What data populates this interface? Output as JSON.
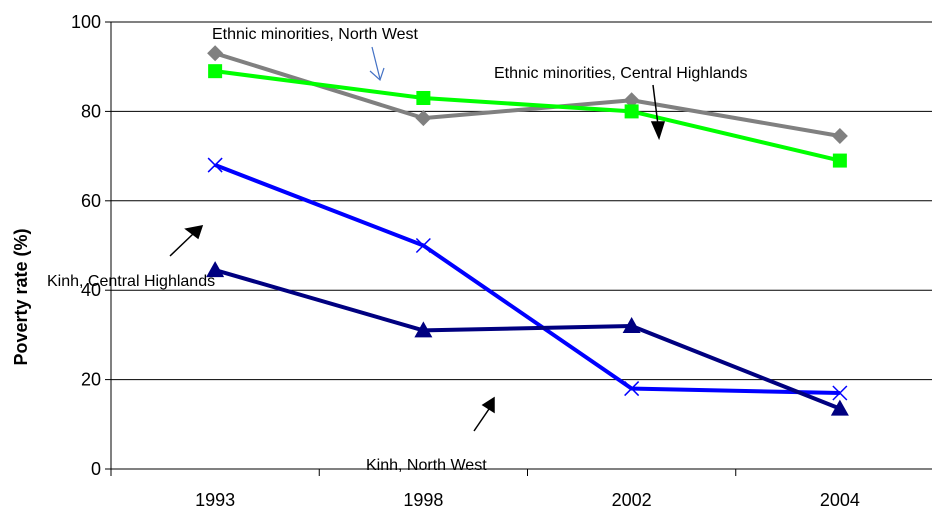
{
  "chart_data": {
    "type": "line",
    "title": "",
    "xlabel": "",
    "ylabel": "Poverty rate (%)",
    "categories": [
      "1993",
      "1998",
      "2002",
      "2004"
    ],
    "ylim": [
      0,
      100
    ],
    "yticks": [
      "0",
      "20",
      "40",
      "60",
      "80",
      "100"
    ],
    "grid": "horizontal",
    "series": [
      {
        "name": "Ethnic minorities, North West",
        "values": [
          93,
          78.5,
          82.5,
          74.5
        ],
        "color": "#808080",
        "marker": "diamond"
      },
      {
        "name": "Ethnic minorities, Central Highlands",
        "values": [
          89,
          83,
          80,
          69
        ],
        "color": "#00ff00",
        "marker": "square"
      },
      {
        "name": "Kinh, Central Highlands",
        "values": [
          68,
          50,
          18,
          17
        ],
        "color": "#0000ff",
        "marker": "x"
      },
      {
        "name": "Kinh, North West",
        "values": [
          44.5,
          31,
          32,
          13.5
        ],
        "color": "#000080",
        "marker": "triangle"
      }
    ]
  }
}
